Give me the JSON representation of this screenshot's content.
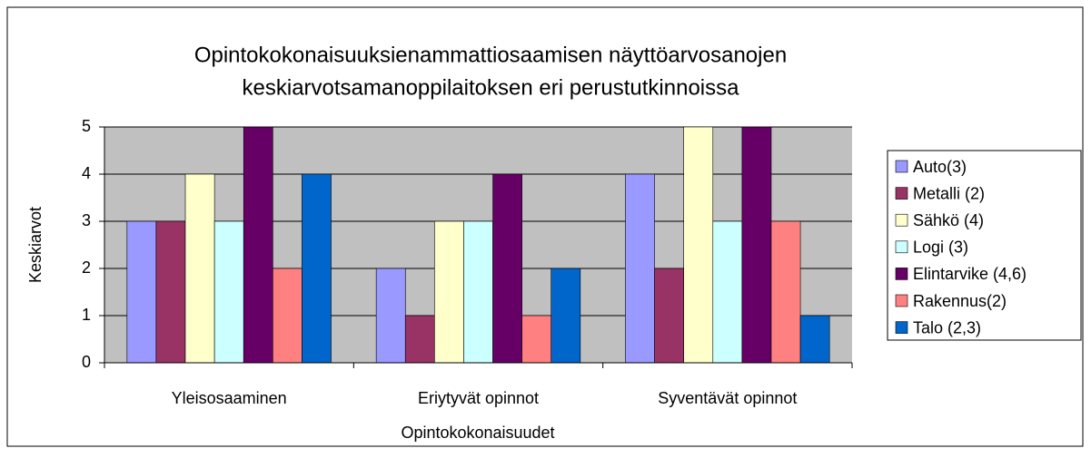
{
  "chart_data": {
    "type": "bar",
    "title": [
      "Opintokokonaisuuksienammattiosaamisen näyttöarvosanojen",
      "keskiarvotsamanoppilaitoksen eri perustutkinnoissa"
    ],
    "x_label": "Opintokokonaisuudet",
    "y_label": "Keskiarvot",
    "categories": [
      "Yleisosaaminen",
      "Eriytyvät opinnot",
      "Syventävät opinnot"
    ],
    "series": [
      {
        "name": "Auto(3)",
        "color": "#9999ff",
        "values": [
          3,
          2,
          4
        ]
      },
      {
        "name": "Metalli (2)",
        "color": "#993366",
        "values": [
          3,
          1,
          2
        ]
      },
      {
        "name": "Sähkö (4)",
        "color": "#ffffcc",
        "values": [
          4,
          3,
          5
        ]
      },
      {
        "name": "Logi (3)",
        "color": "#ccffff",
        "values": [
          3,
          3,
          3
        ]
      },
      {
        "name": "Elintarvike (4,6)",
        "color": "#660066",
        "values": [
          5,
          4,
          5
        ]
      },
      {
        "name": "Rakennus(2)",
        "color": "#ff8080",
        "values": [
          2,
          1,
          3
        ]
      },
      {
        "name": "Talo (2,3)",
        "color": "#0066cc",
        "values": [
          4,
          2,
          1
        ]
      }
    ],
    "ylim": [
      0,
      5
    ],
    "yticks": [
      0,
      1,
      2,
      3,
      4,
      5
    ],
    "grid": true,
    "legend": "right"
  }
}
